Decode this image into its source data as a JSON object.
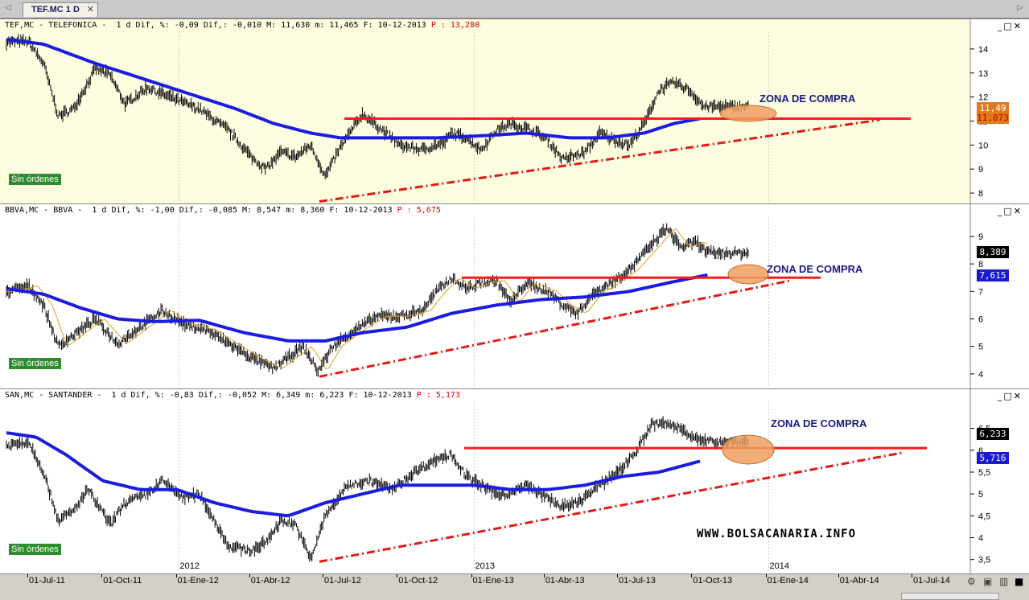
{
  "tab": {
    "label": "TEF.MC 1 D",
    "close": "✕",
    "left_arrow": "◁",
    "right_arrow": "▷"
  },
  "win": {
    "min": "_",
    "restore": "□",
    "close": "✕"
  },
  "panels": [
    {
      "header_main": "TEF,MC - TELEFONICA -  1 d Dif, %: -0,09 Dif,: -0,010 M: 11,630 m: 11,465 F: 10-12-2013",
      "header_p": "P : 13,280",
      "orders": "Sin órdenes",
      "zone_label": "ZONA DE COMPRA",
      "price_box_1": "11,49",
      "price_box_2": "11,073",
      "yticks": [
        "14",
        "13",
        "12",
        "11",
        "10",
        "9",
        "8"
      ]
    },
    {
      "header_main": "BBVA,MC - BBVA -  1 d Dif, %: -1,00 Dif,: -0,085 M: 8,547 m: 8,360 F: 10-12-2013",
      "header_p": "P : 5,675",
      "orders": "Sin órdenes",
      "zone_label": "ZONA DE COMPRA",
      "price_box_1": "8,389",
      "price_box_2": "7,615",
      "yticks": [
        "9",
        "8",
        "7",
        "6",
        "5",
        "4"
      ]
    },
    {
      "header_main": "SAN,MC - SANTANDER -  1 d Dif, %: -0,83 Dif,: -0,052 M: 6,349 m: 6,223 F: 10-12-2013",
      "header_p": "P : 5,173",
      "orders": "Sin órdenes",
      "zone_label": "ZONA DE COMPRA",
      "price_box_1": "6,233",
      "price_box_2": "5,716",
      "yticks": [
        "6,5",
        "6",
        "5,5",
        "5",
        "4,5",
        "4",
        "3,5"
      ]
    }
  ],
  "website": "WWW.BOLSACANARIA.INFO",
  "xaxis": {
    "labels": [
      "01-Jul-11",
      "01-Oct-11",
      "01-Ene-12",
      "01-Abr-12",
      "01-Jul-12",
      "01-Oct-12",
      "01-Ene-13",
      "01-Abr-13",
      "01-Jul-13",
      "01-Oct-13",
      "01-Ene-14",
      "01-Abr-14",
      "01-Jul-14"
    ],
    "years": [
      "2012",
      "2013",
      "2014"
    ]
  },
  "colors": {
    "ma": "#1c1ce0",
    "resistance": "#ff1a1a",
    "trend": "#e01a1a",
    "ellipse": "#f0a060",
    "bg1": "#fdfde0",
    "bg2": "#ffffff",
    "bg3": "#ffffff"
  },
  "chart_data": [
    {
      "type": "line",
      "title": "TEF,MC - TELEFONICA",
      "ylim": [
        7.6,
        14.7
      ],
      "resistance": 11.1,
      "trend": [
        {
          "x": "2012-06-25",
          "y": 7.65
        },
        {
          "x": "2013-12-20",
          "y": 11.05
        }
      ],
      "price_anchors": [
        [
          0,
          14.3
        ],
        [
          0.03,
          14.3
        ],
        [
          0.05,
          13.4
        ],
        [
          0.07,
          11.2
        ],
        [
          0.09,
          11.5
        ],
        [
          0.11,
          12.6
        ],
        [
          0.12,
          13.2
        ],
        [
          0.14,
          12.9
        ],
        [
          0.16,
          11.7
        ],
        [
          0.19,
          12.4
        ],
        [
          0.22,
          12.0
        ],
        [
          0.26,
          11.5
        ],
        [
          0.3,
          10.6
        ],
        [
          0.33,
          9.5
        ],
        [
          0.35,
          9.0
        ],
        [
          0.37,
          9.7
        ],
        [
          0.39,
          9.5
        ],
        [
          0.41,
          10.0
        ],
        [
          0.43,
          8.7
        ],
        [
          0.45,
          9.9
        ],
        [
          0.48,
          11.3
        ],
        [
          0.5,
          10.8
        ],
        [
          0.53,
          10.0
        ],
        [
          0.56,
          9.8
        ],
        [
          0.59,
          10.1
        ],
        [
          0.6,
          10.5
        ],
        [
          0.62,
          10.3
        ],
        [
          0.64,
          9.8
        ],
        [
          0.66,
          10.6
        ],
        [
          0.68,
          10.9
        ],
        [
          0.71,
          10.6
        ],
        [
          0.73,
          10.2
        ],
        [
          0.75,
          9.4
        ],
        [
          0.78,
          9.7
        ],
        [
          0.8,
          10.5
        ],
        [
          0.82,
          10.2
        ],
        [
          0.84,
          10.0
        ],
        [
          0.86,
          10.9
        ],
        [
          0.88,
          12.3
        ],
        [
          0.9,
          12.6
        ],
        [
          0.92,
          12.3
        ],
        [
          0.94,
          11.6
        ]
      ],
      "ma_anchors": [
        [
          0,
          14.4
        ],
        [
          0.05,
          14.2
        ],
        [
          0.12,
          13.4
        ],
        [
          0.18,
          12.8
        ],
        [
          0.25,
          12.1
        ],
        [
          0.31,
          11.5
        ],
        [
          0.36,
          10.9
        ],
        [
          0.41,
          10.5
        ],
        [
          0.45,
          10.3
        ],
        [
          0.52,
          10.3
        ],
        [
          0.58,
          10.3
        ],
        [
          0.65,
          10.4
        ],
        [
          0.7,
          10.5
        ],
        [
          0.76,
          10.3
        ],
        [
          0.81,
          10.3
        ],
        [
          0.86,
          10.5
        ],
        [
          0.9,
          10.9
        ],
        [
          0.935,
          11.1
        ]
      ]
    },
    {
      "type": "line",
      "title": "BBVA,MC - BBVA",
      "ylim": [
        3.5,
        9.7
      ],
      "resistance": 7.5,
      "trend": [
        {
          "x": "2012-06-25",
          "y": 3.9
        },
        {
          "x": "2013-12-20",
          "y": 7.4
        }
      ],
      "price_anchors": [
        [
          0,
          7.0
        ],
        [
          0.03,
          7.2
        ],
        [
          0.05,
          6.5
        ],
        [
          0.07,
          5.0
        ],
        [
          0.09,
          5.4
        ],
        [
          0.12,
          6.0
        ],
        [
          0.15,
          5.1
        ],
        [
          0.18,
          5.7
        ],
        [
          0.21,
          6.3
        ],
        [
          0.24,
          5.8
        ],
        [
          0.27,
          5.6
        ],
        [
          0.3,
          5.1
        ],
        [
          0.33,
          4.6
        ],
        [
          0.36,
          4.2
        ],
        [
          0.38,
          4.6
        ],
        [
          0.4,
          5.0
        ],
        [
          0.42,
          4.1
        ],
        [
          0.44,
          5.0
        ],
        [
          0.47,
          5.6
        ],
        [
          0.5,
          6.1
        ],
        [
          0.53,
          6.1
        ],
        [
          0.56,
          6.3
        ],
        [
          0.58,
          7.0
        ],
        [
          0.6,
          7.5
        ],
        [
          0.62,
          7.1
        ],
        [
          0.64,
          7.3
        ],
        [
          0.66,
          7.4
        ],
        [
          0.68,
          6.6
        ],
        [
          0.7,
          7.3
        ],
        [
          0.73,
          7.0
        ],
        [
          0.75,
          6.5
        ],
        [
          0.77,
          6.2
        ],
        [
          0.79,
          6.9
        ],
        [
          0.82,
          7.4
        ],
        [
          0.84,
          7.8
        ],
        [
          0.86,
          8.4
        ],
        [
          0.88,
          9.0
        ],
        [
          0.89,
          9.3
        ],
        [
          0.91,
          8.6
        ],
        [
          0.93,
          8.8
        ],
        [
          0.945,
          8.4
        ]
      ],
      "ma_anchors": [
        [
          0,
          7.1
        ],
        [
          0.05,
          6.9
        ],
        [
          0.1,
          6.4
        ],
        [
          0.15,
          6.0
        ],
        [
          0.2,
          5.9
        ],
        [
          0.26,
          5.95
        ],
        [
          0.32,
          5.5
        ],
        [
          0.38,
          5.2
        ],
        [
          0.43,
          5.2
        ],
        [
          0.48,
          5.5
        ],
        [
          0.54,
          5.7
        ],
        [
          0.6,
          6.2
        ],
        [
          0.66,
          6.5
        ],
        [
          0.72,
          6.7
        ],
        [
          0.78,
          6.8
        ],
        [
          0.84,
          7.0
        ],
        [
          0.89,
          7.3
        ],
        [
          0.945,
          7.6
        ]
      ]
    },
    {
      "type": "line",
      "title": "SAN,MC - SANTANDER",
      "ylim": [
        3.2,
        7.1
      ],
      "resistance": 6.05,
      "trend": [
        {
          "x": "2012-06-25",
          "y": 3.45
        },
        {
          "x": "2013-12-20",
          "y": 5.95
        }
      ],
      "price_anchors": [
        [
          0,
          6.1
        ],
        [
          0.03,
          6.2
        ],
        [
          0.05,
          5.5
        ],
        [
          0.07,
          4.4
        ],
        [
          0.09,
          4.6
        ],
        [
          0.11,
          5.1
        ],
        [
          0.14,
          4.3
        ],
        [
          0.16,
          4.8
        ],
        [
          0.19,
          5.0
        ],
        [
          0.21,
          5.3
        ],
        [
          0.24,
          4.9
        ],
        [
          0.26,
          5.0
        ],
        [
          0.28,
          4.4
        ],
        [
          0.3,
          3.8
        ],
        [
          0.33,
          3.7
        ],
        [
          0.35,
          3.9
        ],
        [
          0.37,
          4.4
        ],
        [
          0.39,
          4.3
        ],
        [
          0.41,
          3.5
        ],
        [
          0.43,
          4.5
        ],
        [
          0.46,
          5.2
        ],
        [
          0.49,
          5.3
        ],
        [
          0.52,
          5.1
        ],
        [
          0.55,
          5.5
        ],
        [
          0.58,
          5.8
        ],
        [
          0.6,
          5.9
        ],
        [
          0.62,
          5.4
        ],
        [
          0.64,
          5.2
        ],
        [
          0.66,
          5.0
        ],
        [
          0.68,
          5.0
        ],
        [
          0.7,
          5.2
        ],
        [
          0.73,
          4.9
        ],
        [
          0.75,
          4.7
        ],
        [
          0.77,
          4.8
        ],
        [
          0.8,
          5.2
        ],
        [
          0.83,
          5.6
        ],
        [
          0.85,
          6.0
        ],
        [
          0.87,
          6.6
        ],
        [
          0.89,
          6.6
        ],
        [
          0.91,
          6.5
        ],
        [
          0.935,
          6.2
        ]
      ],
      "ma_anchors": [
        [
          0,
          6.4
        ],
        [
          0.04,
          6.3
        ],
        [
          0.08,
          5.9
        ],
        [
          0.13,
          5.3
        ],
        [
          0.18,
          5.1
        ],
        [
          0.23,
          5.1
        ],
        [
          0.28,
          4.8
        ],
        [
          0.33,
          4.6
        ],
        [
          0.38,
          4.5
        ],
        [
          0.43,
          4.8
        ],
        [
          0.48,
          5.0
        ],
        [
          0.53,
          5.2
        ],
        [
          0.58,
          5.2
        ],
        [
          0.63,
          5.2
        ],
        [
          0.68,
          5.1
        ],
        [
          0.73,
          5.1
        ],
        [
          0.78,
          5.2
        ],
        [
          0.83,
          5.4
        ],
        [
          0.88,
          5.5
        ],
        [
          0.935,
          5.75
        ]
      ]
    }
  ]
}
